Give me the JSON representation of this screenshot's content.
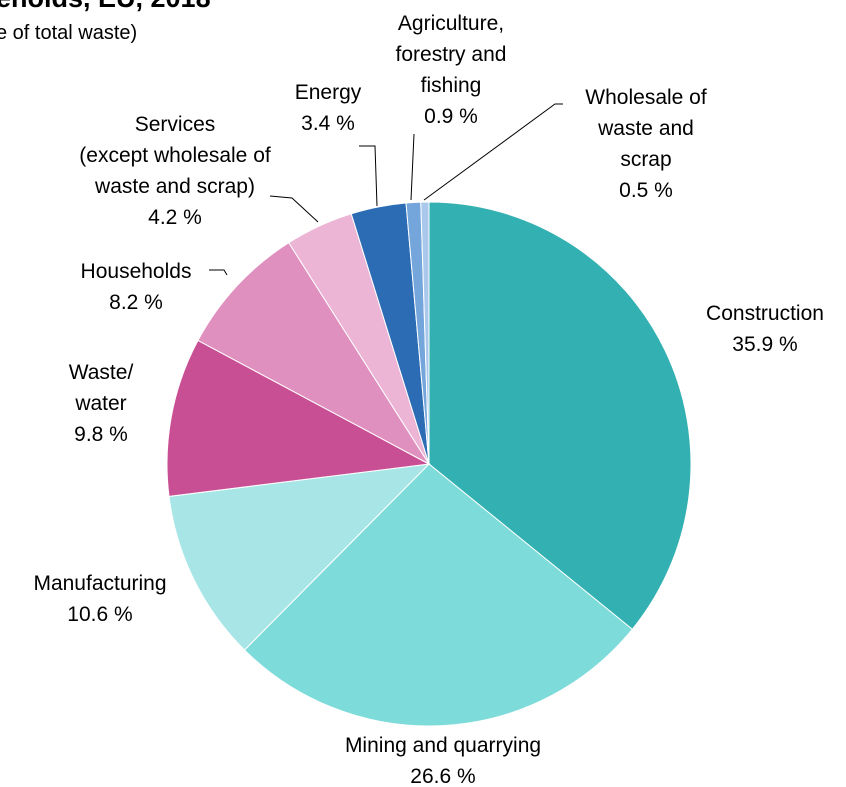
{
  "chart_data": {
    "type": "pie",
    "title": "eholds, EU, 2018",
    "subtitle": "e of total waste)",
    "slices": [
      {
        "name": "Construction",
        "label_lines": [
          "Construction"
        ],
        "value": 35.9,
        "value_label": "35.9 %",
        "color": "#33b0b1"
      },
      {
        "name": "Mining and quarrying",
        "label_lines": [
          "Mining and quarrying"
        ],
        "value": 26.6,
        "value_label": "26.6 %",
        "color": "#7ddbd9"
      },
      {
        "name": "Manufacturing",
        "label_lines": [
          "Manufacturing"
        ],
        "value": 10.6,
        "value_label": "10.6 %",
        "color": "#a8e5e6"
      },
      {
        "name": "Waste/ water",
        "label_lines": [
          "Waste/",
          "water"
        ],
        "value": 9.8,
        "value_label": "9.8 %",
        "color": "#c94f95"
      },
      {
        "name": "Households",
        "label_lines": [
          "Households"
        ],
        "value": 8.2,
        "value_label": "8.2 %",
        "color": "#e090be"
      },
      {
        "name": "Services (except wholesale of waste and scrap)",
        "label_lines": [
          "Services",
          "(except wholesale of",
          "waste and scrap)"
        ],
        "value": 4.2,
        "value_label": "4.2 %",
        "color": "#ecb5d6"
      },
      {
        "name": "Energy",
        "label_lines": [
          "Energy"
        ],
        "value": 3.4,
        "value_label": "3.4 %",
        "color": "#2c6cb4"
      },
      {
        "name": "Agriculture, forestry and fishing",
        "label_lines": [
          "Agriculture,",
          "forestry and",
          "fishing"
        ],
        "value": 0.9,
        "value_label": "0.9 %",
        "color": "#74a6dc"
      },
      {
        "name": "Wholesale of waste and scrap",
        "label_lines": [
          "Wholesale of",
          "waste and",
          "scrap"
        ],
        "value": 0.5,
        "value_label": "0.5 %",
        "color": "#a9c8ec"
      }
    ],
    "start_angle": "12 o'clock",
    "direction": "clockwise",
    "legend": "none (direct labels)"
  }
}
